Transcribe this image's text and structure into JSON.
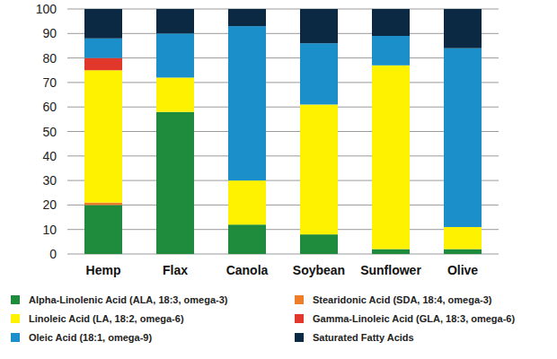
{
  "chart_data": {
    "type": "bar",
    "stacked": true,
    "grid": true,
    "legend": "bottom",
    "categories": [
      "Hemp",
      "Flax",
      "Canola",
      "Soybean",
      "Sunflower",
      "Olive"
    ],
    "ylim": [
      0,
      100
    ],
    "yticks": [
      0,
      10,
      20,
      30,
      40,
      50,
      60,
      70,
      80,
      90,
      100
    ],
    "series": [
      {
        "name": "Alpha-Linolenic Acid (ALA, 18:3, omega-3)",
        "color": "#1e8b3d",
        "values": [
          20,
          58,
          12,
          8,
          2,
          2
        ]
      },
      {
        "name": "Stearidonic Acid (SDA, 18:4, omega-3)",
        "color": "#ee7d2a",
        "values": [
          1,
          0,
          0,
          0,
          0,
          0
        ]
      },
      {
        "name": "Linoleic Acid (LA, 18:2, omega-6)",
        "color": "#fff200",
        "values": [
          54,
          14,
          18,
          53,
          75,
          9
        ]
      },
      {
        "name": "Gamma-Linoleic Acid (GLA, 18:3, omega-6)",
        "color": "#e2382c",
        "values": [
          5,
          0,
          0,
          0,
          0,
          0
        ]
      },
      {
        "name": "Oleic Acid (18:1, omega-9)",
        "color": "#1a8fca",
        "values": [
          8,
          18,
          63,
          25,
          12,
          73
        ]
      },
      {
        "name": "Saturated Fatty Acids",
        "color": "#0c2943",
        "values": [
          12,
          10,
          7,
          14,
          11,
          16
        ]
      }
    ]
  }
}
